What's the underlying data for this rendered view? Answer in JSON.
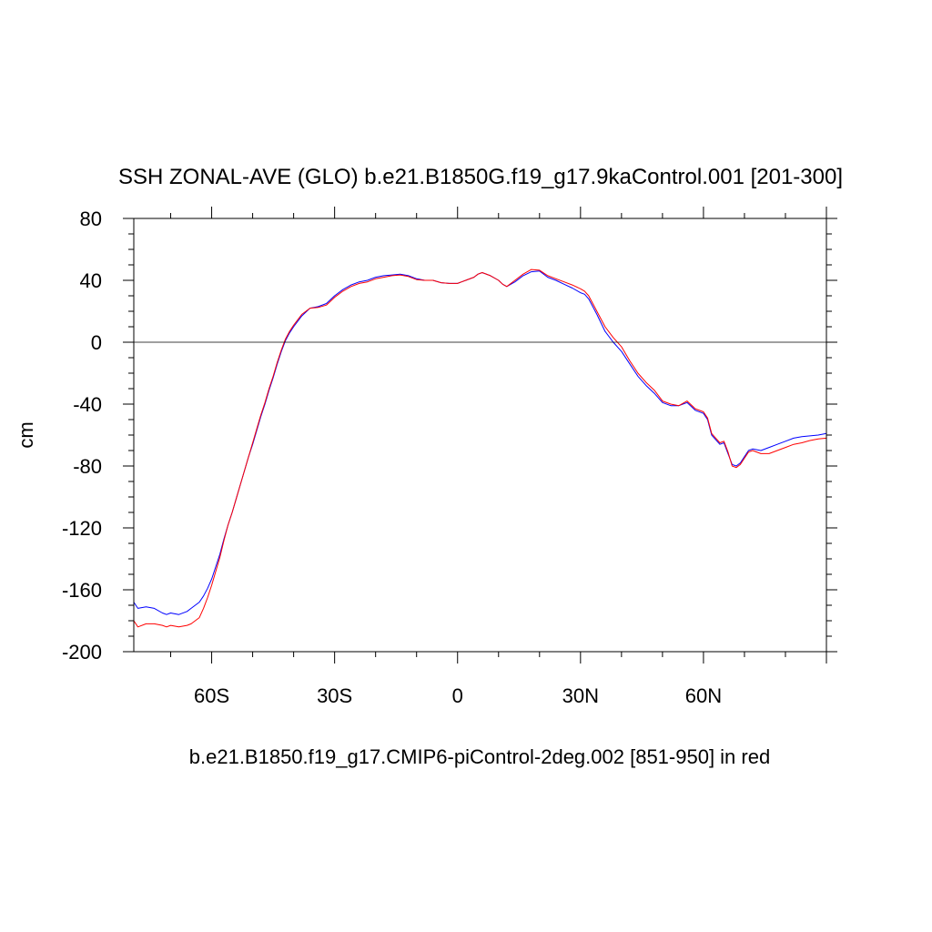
{
  "chart_data": {
    "type": "line",
    "title": "SSH ZONAL-AVE (GLO) b.e21.B1850G.f19_g17.9kaControl.001 [201-300]",
    "xlabel": "b.e21.B1850.f19_g17.CMIP6-piControl-2deg.002 [851-950] in red",
    "ylabel": "cm",
    "xlim": [
      -79,
      90
    ],
    "ylim": [
      -200,
      80
    ],
    "x_ticks": [
      {
        "value": -60,
        "label": "60S"
      },
      {
        "value": -30,
        "label": "30S"
      },
      {
        "value": 0,
        "label": "0"
      },
      {
        "value": 30,
        "label": "30N"
      },
      {
        "value": 60,
        "label": "60N"
      }
    ],
    "y_ticks": [
      {
        "value": 80,
        "label": "80"
      },
      {
        "value": 40,
        "label": "40"
      },
      {
        "value": 0,
        "label": "0"
      },
      {
        "value": -40,
        "label": "-40"
      },
      {
        "value": -80,
        "label": "-80"
      },
      {
        "value": -120,
        "label": "-120"
      },
      {
        "value": -160,
        "label": "-160"
      },
      {
        "value": -200,
        "label": "-200"
      }
    ],
    "reference_line": 0,
    "grid": false,
    "series": [
      {
        "color": "#0000ff",
        "x": [
          -79,
          -78,
          -76,
          -74,
          -72,
          -71,
          -70,
          -68,
          -66,
          -65,
          -63,
          -62,
          -61,
          -60,
          -59,
          -58,
          -57,
          -56,
          -55,
          -54,
          -53,
          -52,
          -51,
          -50,
          -49,
          -48,
          -47,
          -46,
          -45,
          -44,
          -43,
          -42,
          -41,
          -40,
          -38,
          -36,
          -34,
          -32,
          -30,
          -28,
          -26,
          -24,
          -22,
          -20,
          -18,
          -16,
          -14,
          -12,
          -10,
          -8,
          -6,
          -4,
          -2,
          0,
          2,
          4,
          5,
          6,
          8,
          10,
          11,
          12,
          14,
          16,
          18,
          20,
          22,
          24,
          26,
          28,
          30,
          31,
          32,
          34,
          36,
          38,
          40,
          42,
          44,
          46,
          48,
          50,
          52,
          54,
          56,
          58,
          60,
          61,
          62,
          64,
          65,
          66,
          67,
          68,
          69,
          70,
          71,
          72,
          74,
          76,
          78,
          80,
          82,
          84,
          86,
          88,
          90
        ],
        "y": [
          -168,
          -172,
          -171,
          -172,
          -175,
          -176,
          -175,
          -176,
          -174,
          -172,
          -168,
          -164,
          -159,
          -153,
          -145,
          -137,
          -127,
          -118,
          -110,
          -101,
          -92,
          -83,
          -74,
          -66,
          -57,
          -48,
          -40,
          -31,
          -23,
          -14,
          -6,
          1,
          6,
          10,
          17,
          22,
          23,
          25,
          30,
          34,
          37,
          39,
          40,
          42,
          43,
          43.5,
          44,
          43,
          41,
          40,
          40,
          38.5,
          38,
          38,
          40,
          42,
          44,
          45,
          43,
          40,
          37.5,
          36,
          39,
          43,
          45.5,
          46,
          42,
          40,
          37.5,
          35,
          32,
          31,
          28,
          18,
          7,
          0,
          -6,
          -14,
          -22,
          -28,
          -33,
          -39,
          -41,
          -41,
          -39,
          -44,
          -46,
          -50,
          -60,
          -66,
          -65,
          -72,
          -79,
          -80,
          -78,
          -74,
          -70,
          -69,
          -70,
          -68,
          -66,
          -64,
          -62,
          -61,
          -60.5,
          -60,
          -59
        ]
      },
      {
        "color": "#ff0000",
        "x": [
          -79,
          -78,
          -76,
          -74,
          -72,
          -71,
          -70,
          -68,
          -66,
          -65,
          -63,
          -62,
          -61,
          -60,
          -59,
          -58,
          -57,
          -56,
          -55,
          -54,
          -53,
          -52,
          -51,
          -50,
          -49,
          -48,
          -47,
          -46,
          -45,
          -44,
          -43,
          -42,
          -41,
          -40,
          -38,
          -36,
          -34,
          -32,
          -30,
          -28,
          -26,
          -24,
          -22,
          -20,
          -18,
          -16,
          -14,
          -12,
          -10,
          -8,
          -6,
          -4,
          -2,
          0,
          2,
          4,
          5,
          6,
          8,
          10,
          11,
          12,
          14,
          16,
          18,
          20,
          22,
          24,
          26,
          28,
          30,
          31,
          32,
          34,
          36,
          38,
          40,
          42,
          44,
          46,
          48,
          50,
          52,
          54,
          56,
          58,
          60,
          61,
          62,
          64,
          65,
          66,
          67,
          68,
          69,
          70,
          71,
          72,
          74,
          76,
          78,
          80,
          82,
          84,
          86,
          88,
          90
        ],
        "y": [
          -180,
          -184,
          -182,
          -182,
          -183,
          -184,
          -183,
          -184,
          -183,
          -182,
          -178,
          -172,
          -165,
          -157,
          -148,
          -139,
          -128,
          -118,
          -110,
          -101,
          -92,
          -83,
          -74,
          -65,
          -56,
          -47,
          -39,
          -30,
          -22,
          -13,
          -5,
          2,
          7,
          11,
          18,
          22,
          22.5,
          24,
          29,
          33,
          36,
          38,
          39,
          41,
          42,
          43,
          43.5,
          42.5,
          40.5,
          40,
          40,
          38.5,
          38,
          38,
          40,
          42,
          44,
          45,
          43,
          40,
          37.5,
          36,
          40,
          44,
          47,
          46.5,
          43,
          41,
          39,
          37,
          34.5,
          33,
          30,
          20,
          10,
          3,
          -3,
          -12,
          -20,
          -26,
          -31,
          -38,
          -40,
          -41,
          -38,
          -43,
          -45,
          -49,
          -59,
          -65,
          -64,
          -71,
          -80,
          -81,
          -79,
          -75,
          -71,
          -70,
          -72,
          -72,
          -70,
          -68,
          -66,
          -65,
          -63.5,
          -62.5,
          -62
        ]
      }
    ]
  }
}
